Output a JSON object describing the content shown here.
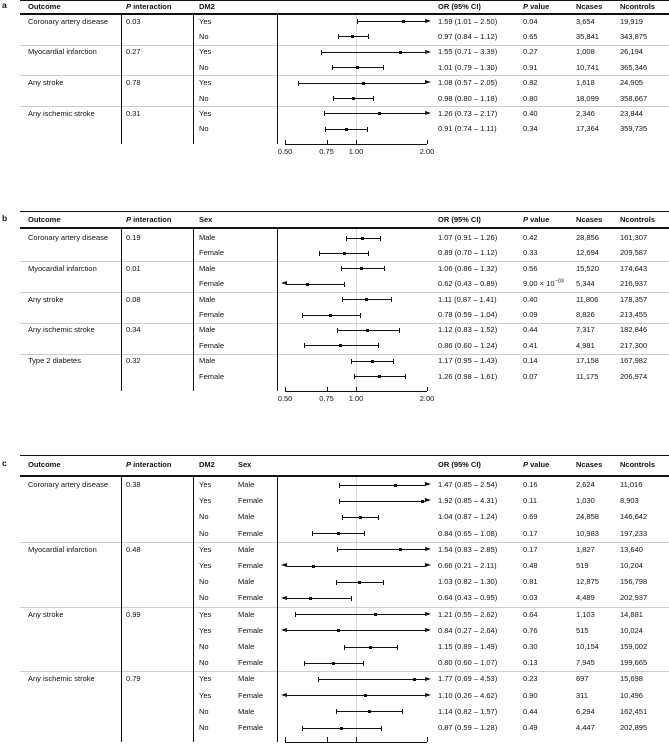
{
  "chart_data": {
    "type": "scatter",
    "subtype": "forest-plot",
    "axis": {
      "scale": "log",
      "min": 0.5,
      "max": 2.0,
      "ref_line": 1.0,
      "ticks": [
        {
          "v": 0.5,
          "label": "0.50"
        },
        {
          "v": 0.75,
          "label": "0.75"
        },
        {
          "v": 1.0,
          "label": "1.00"
        },
        {
          "v": 2.0,
          "label": "2.00"
        }
      ]
    },
    "panels": [
      {
        "label": "a",
        "headers": {
          "outcome": "Outcome",
          "p_interaction": "P interaction",
          "sub1": "DM2",
          "or_ci": "OR (95% CI)",
          "p_value": "P value",
          "ncases": "Ncases",
          "ncontrols": "Ncontrols"
        },
        "groups": [
          {
            "outcome": "Coronary artery disease",
            "p_interaction": "0.03",
            "rows": [
              {
                "sub1": "Yes",
                "or": 1.59,
                "lo": 1.01,
                "hi": 2.5,
                "or_ci": "1.59 (1.01 – 2.50)",
                "p": "0.04",
                "ncases": "3,654",
                "ncontrols": "19,919"
              },
              {
                "sub1": "No",
                "or": 0.97,
                "lo": 0.84,
                "hi": 1.12,
                "or_ci": "0.97 (0.84 – 1.12)",
                "p": "0.65",
                "ncases": "35,841",
                "ncontrols": "343,875"
              }
            ]
          },
          {
            "outcome": "Myocardial infarction",
            "p_interaction": "0.27",
            "rows": [
              {
                "sub1": "Yes",
                "or": 1.55,
                "lo": 0.71,
                "hi": 3.39,
                "or_ci": "1.55 (0.71 – 3.39)",
                "p": "0.27",
                "ncases": "1,008",
                "ncontrols": "26,194"
              },
              {
                "sub1": "No",
                "or": 1.01,
                "lo": 0.79,
                "hi": 1.3,
                "or_ci": "1.01 (0.79 – 1.30)",
                "p": "0.91",
                "ncases": "10,741",
                "ncontrols": "365,346"
              }
            ]
          },
          {
            "outcome": "Any stroke",
            "p_interaction": "0.78",
            "rows": [
              {
                "sub1": "Yes",
                "or": 1.08,
                "lo": 0.57,
                "hi": 2.05,
                "or_ci": "1.08 (0.57 – 2.05)",
                "p": "0.82",
                "ncases": "1,618",
                "ncontrols": "24,905"
              },
              {
                "sub1": "No",
                "or": 0.98,
                "lo": 0.8,
                "hi": 1.18,
                "or_ci": "0.98 (0.80 – 1.18)",
                "p": "0.80",
                "ncases": "18,099",
                "ncontrols": "358,667"
              }
            ]
          },
          {
            "outcome": "Any ischemic stroke",
            "p_interaction": "0.31",
            "rows": [
              {
                "sub1": "Yes",
                "or": 1.26,
                "lo": 0.73,
                "hi": 2.17,
                "or_ci": "1.26 (0.73 – 2.17)",
                "p": "0.40",
                "ncases": "2,346",
                "ncontrols": "23,844"
              },
              {
                "sub1": "No",
                "or": 0.91,
                "lo": 0.74,
                "hi": 1.11,
                "or_ci": "0.91 (0.74 – 1.11)",
                "p": "0.34",
                "ncases": "17,364",
                "ncontrols": "359,735"
              }
            ]
          }
        ]
      },
      {
        "label": "b",
        "headers": {
          "outcome": "Outcome",
          "p_interaction": "P interaction",
          "sub1": "Sex",
          "or_ci": "OR (95% CI)",
          "p_value": "P value",
          "ncases": "Ncases",
          "ncontrols": "Ncontrols"
        },
        "groups": [
          {
            "outcome": "Coronary artery disease",
            "p_interaction": "0.19",
            "rows": [
              {
                "sub1": "Male",
                "or": 1.07,
                "lo": 0.91,
                "hi": 1.26,
                "or_ci": "1.07 (0.91 – 1.26)",
                "p": "0.42",
                "ncases": "28,856",
                "ncontrols": "161,307"
              },
              {
                "sub1": "Female",
                "or": 0.89,
                "lo": 0.7,
                "hi": 1.12,
                "or_ci": "0.89 (0.70 – 1.12)",
                "p": "0.33",
                "ncases": "12,694",
                "ncontrols": "209,587"
              }
            ]
          },
          {
            "outcome": "Myocardial infarction",
            "p_interaction": "0.01",
            "rows": [
              {
                "sub1": "Male",
                "or": 1.06,
                "lo": 0.86,
                "hi": 1.32,
                "or_ci": "1.06 (0.86 – 1.32)",
                "p": "0.56",
                "ncases": "15,520",
                "ncontrols": "174,643"
              },
              {
                "sub1": "Female",
                "or": 0.62,
                "lo": 0.43,
                "hi": 0.89,
                "or_ci": "0.62 (0.43 – 0.89)",
                "p": "9.00 × 10",
                "p_sup": "−03",
                "ncases": "5,344",
                "ncontrols": "216,937"
              }
            ]
          },
          {
            "outcome": "Any stroke",
            "p_interaction": "0.08",
            "rows": [
              {
                "sub1": "Male",
                "or": 1.11,
                "lo": 0.87,
                "hi": 1.41,
                "or_ci": "1.11 (0.87 – 1.41)",
                "p": "0.40",
                "ncases": "11,806",
                "ncontrols": "178,357"
              },
              {
                "sub1": "Female",
                "or": 0.78,
                "lo": 0.59,
                "hi": 1.04,
                "or_ci": "0.78 (0.59 – 1.04)",
                "p": "0.09",
                "ncases": "8,826",
                "ncontrols": "213,455"
              }
            ]
          },
          {
            "outcome": "Any ischemic stroke",
            "p_interaction": "0.34",
            "rows": [
              {
                "sub1": "Male",
                "or": 1.12,
                "lo": 0.83,
                "hi": 1.52,
                "or_ci": "1.12 (0.83 – 1.52)",
                "p": "0.44",
                "ncases": "7,317",
                "ncontrols": "182,846"
              },
              {
                "sub1": "Female",
                "or": 0.86,
                "lo": 0.6,
                "hi": 1.24,
                "or_ci": "0.86 (0.60 – 1.24)",
                "p": "0.41",
                "ncases": "4,981",
                "ncontrols": "217,300"
              }
            ]
          },
          {
            "outcome": "Type 2 diabetes",
            "p_interaction": "0.32",
            "rows": [
              {
                "sub1": "Male",
                "or": 1.17,
                "lo": 0.95,
                "hi": 1.43,
                "or_ci": "1.17 (0.95 – 1.43)",
                "p": "0.14",
                "ncases": "17,158",
                "ncontrols": "167,982"
              },
              {
                "sub1": "Female",
                "or": 1.26,
                "lo": 0.98,
                "hi": 1.61,
                "or_ci": "1.26 (0.98 – 1.61)",
                "p": "0.07",
                "ncases": "11,175",
                "ncontrols": "206,974"
              }
            ]
          }
        ]
      },
      {
        "label": "c",
        "headers": {
          "outcome": "Outcome",
          "p_interaction": "P interaction",
          "sub1": "DM2",
          "sub2": "Sex",
          "or_ci": "OR (95% CI)",
          "p_value": "P value",
          "ncases": "Ncases",
          "ncontrols": "Ncontrols"
        },
        "groups": [
          {
            "outcome": "Coronary artery disease",
            "p_interaction": "0.38",
            "rows": [
              {
                "sub1": "Yes",
                "sub2": "Male",
                "or": 1.47,
                "lo": 0.85,
                "hi": 2.54,
                "or_ci": "1.47 (0.85 – 2.54)",
                "p": "0.16",
                "ncases": "2,624",
                "ncontrols": "11,016"
              },
              {
                "sub1": "Yes",
                "sub2": "Female",
                "or": 1.92,
                "lo": 0.85,
                "hi": 4.31,
                "or_ci": "1.92 (0.85 – 4.31)",
                "p": "0.11",
                "ncases": "1,030",
                "ncontrols": "8,903"
              },
              {
                "sub1": "No",
                "sub2": "Male",
                "or": 1.04,
                "lo": 0.87,
                "hi": 1.24,
                "or_ci": "1.04 (0.87 – 1.24)",
                "p": "0.69",
                "ncases": "24,858",
                "ncontrols": "146,642"
              },
              {
                "sub1": "No",
                "sub2": "Female",
                "or": 0.84,
                "lo": 0.65,
                "hi": 1.08,
                "or_ci": "0.84 (0.65 – 1.08)",
                "p": "0.17",
                "ncases": "10,983",
                "ncontrols": "197,233"
              }
            ]
          },
          {
            "outcome": "Myocardial infarction",
            "p_interaction": "0.48",
            "rows": [
              {
                "sub1": "Yes",
                "sub2": "Male",
                "or": 1.54,
                "lo": 0.83,
                "hi": 2.85,
                "or_ci": "1.54 (0.83 – 2.85)",
                "p": "0.17",
                "ncases": "1,827",
                "ncontrols": "13,640"
              },
              {
                "sub1": "Yes",
                "sub2": "Female",
                "or": 0.66,
                "lo": 0.21,
                "hi": 2.11,
                "or_ci": "0.66 (0.21 – 2.11)",
                "p": "0.48",
                "ncases": "519",
                "ncontrols": "10,204"
              },
              {
                "sub1": "No",
                "sub2": "Male",
                "or": 1.03,
                "lo": 0.82,
                "hi": 1.3,
                "or_ci": "1.03 (0.82 – 1.30)",
                "p": "0.81",
                "ncases": "12,875",
                "ncontrols": "156,798"
              },
              {
                "sub1": "No",
                "sub2": "Female",
                "or": 0.64,
                "lo": 0.43,
                "hi": 0.95,
                "or_ci": "0.64 (0.43 – 0.95)",
                "p": "0.03",
                "ncases": "4,489",
                "ncontrols": "202,937"
              }
            ]
          },
          {
            "outcome": "Any stroke",
            "p_interaction": "0.99",
            "rows": [
              {
                "sub1": "Yes",
                "sub2": "Male",
                "or": 1.21,
                "lo": 0.55,
                "hi": 2.62,
                "or_ci": "1.21 (0.55 – 2.62)",
                "p": "0.64",
                "ncases": "1,103",
                "ncontrols": "14,881"
              },
              {
                "sub1": "Yes",
                "sub2": "Female",
                "or": 0.84,
                "lo": 0.27,
                "hi": 2.64,
                "or_ci": "0.84 (0.27 – 2.64)",
                "p": "0.76",
                "ncases": "515",
                "ncontrols": "10,024"
              },
              {
                "sub1": "No",
                "sub2": "Male",
                "or": 1.15,
                "lo": 0.89,
                "hi": 1.49,
                "or_ci": "1.15 (0.89 – 1.49)",
                "p": "0.30",
                "ncases": "10,154",
                "ncontrols": "159,002"
              },
              {
                "sub1": "No",
                "sub2": "Female",
                "or": 0.8,
                "lo": 0.6,
                "hi": 1.07,
                "or_ci": "0.80 (0.60 – 1.07)",
                "p": "0.13",
                "ncases": "7,945",
                "ncontrols": "199,665"
              }
            ]
          },
          {
            "outcome": "Any ischemic stroke",
            "p_interaction": "0.79",
            "rows": [
              {
                "sub1": "Yes",
                "sub2": "Male",
                "or": 1.77,
                "lo": 0.69,
                "hi": 4.53,
                "or_ci": "1.77 (0.69 – 4.53)",
                "p": "0.23",
                "ncases": "697",
                "ncontrols": "15,698"
              },
              {
                "sub1": "Yes",
                "sub2": "Female",
                "or": 1.1,
                "lo": 0.26,
                "hi": 4.62,
                "or_ci": "1.10 (0.26 – 4.62)",
                "p": "0.90",
                "ncases": "311",
                "ncontrols": "10,496"
              },
              {
                "sub1": "No",
                "sub2": "Male",
                "or": 1.14,
                "lo": 0.82,
                "hi": 1.57,
                "or_ci": "1.14 (0.82 – 1.57)",
                "p": "0.44",
                "ncases": "6,294",
                "ncontrols": "162,451"
              },
              {
                "sub1": "No",
                "sub2": "Female",
                "or": 0.87,
                "lo": 0.59,
                "hi": 1.28,
                "or_ci": "0.87 (0.59 – 1.28)",
                "p": "0.49",
                "ncases": "4,447",
                "ncontrols": "202,895"
              }
            ]
          }
        ]
      }
    ]
  }
}
